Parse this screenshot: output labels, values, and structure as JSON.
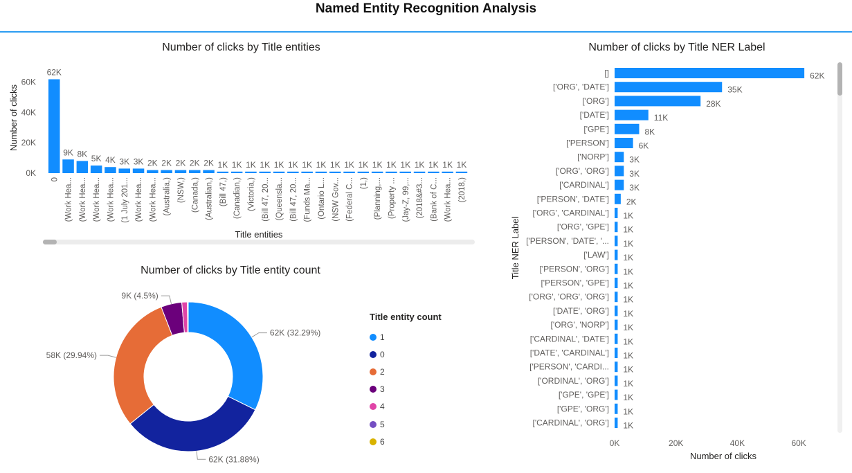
{
  "report": {
    "title": "Named Entity Recognition Analysis"
  },
  "colors": {
    "accent": "#2b9cf2",
    "bar": "#118dff"
  },
  "chart_data": [
    {
      "id": "clicks_by_title_entities",
      "type": "bar",
      "title": "Number of clicks by Title entities",
      "xlabel": "Title entities",
      "ylabel": "Number of clicks",
      "ylim": [
        0,
        62000
      ],
      "yticks": [
        0,
        20000,
        40000,
        60000
      ],
      "ytick_labels": [
        "0K",
        "20K",
        "40K",
        "60K"
      ],
      "categories": [
        "0",
        "(Work Hea...",
        "(Work Hea...",
        "(Work Hea...",
        "(Work Hea...",
        "(1 July 201...",
        "(Work Hea...",
        "(Work Hea...",
        "(Australia,)",
        "(NSW,)",
        "(Canada,)",
        "(Australian,)",
        "(Bill 47,)",
        "(Canadian,)",
        "(Victoria,)",
        "(Bill 47, 20...",
        "(Queensla...",
        "(Bill 47, 20...",
        "(Funds Ma...",
        "(Ontario L...",
        "(NSW Gov...",
        "(Federal C...",
        "(1,)",
        "(Planning,...",
        "(Property ...",
        "(Jay-Z, 99,...",
        "(2018&#3...",
        "(Bank of C...",
        "(Work Hea...",
        "(2018,)"
      ],
      "values": [
        61800,
        9000,
        8000,
        5000,
        4000,
        3000,
        3000,
        2000,
        2000,
        2000,
        2000,
        2000,
        1000,
        1000,
        1000,
        1000,
        1000,
        1000,
        1000,
        1000,
        1000,
        1000,
        1000,
        1000,
        1000,
        1000,
        1000,
        1000,
        1000,
        1000
      ],
      "data_labels": [
        "62K",
        "9K",
        "8K",
        "5K",
        "4K",
        "3K",
        "3K",
        "2K",
        "2K",
        "2K",
        "2K",
        "2K",
        "1K",
        "1K",
        "1K",
        "1K",
        "1K",
        "1K",
        "1K",
        "1K",
        "1K",
        "1K",
        "1K",
        "1K",
        "1K",
        "1K",
        "1K",
        "1K",
        "1K",
        "1K"
      ],
      "color": "#118dff",
      "grid": false
    },
    {
      "id": "clicks_by_entity_count",
      "type": "pie",
      "title": "Number of clicks by Title entity count",
      "legend_title": "Title entity count",
      "legend_position": "right",
      "donut": true,
      "slices": [
        {
          "label": "1",
          "value": 32.29,
          "display": "62K (32.29%)",
          "color": "#118dff"
        },
        {
          "label": "0",
          "value": 31.88,
          "display": "62K (31.88%)",
          "color": "#12239e"
        },
        {
          "label": "2",
          "value": 29.94,
          "display": "58K (29.94%)",
          "color": "#e66c37"
        },
        {
          "label": "3",
          "value": 4.5,
          "display": "9K (4.5%)",
          "color": "#6b007b"
        },
        {
          "label": "4",
          "value": 1.2,
          "display": "",
          "color": "#e044a7"
        },
        {
          "label": "5",
          "value": 0.1,
          "display": "",
          "color": "#744ec2"
        },
        {
          "label": "6",
          "value": 0.09,
          "display": "",
          "color": "#d9b300"
        }
      ]
    },
    {
      "id": "clicks_by_ner_label",
      "type": "bar",
      "orientation": "horizontal",
      "title": "Number of clicks by Title NER Label",
      "xlabel": "Number of clicks",
      "ylabel": "Title NER Label",
      "xlim": [
        0,
        62000
      ],
      "xticks": [
        0,
        20000,
        40000,
        60000
      ],
      "xtick_labels": [
        "0K",
        "20K",
        "40K",
        "60K"
      ],
      "categories": [
        "[]",
        "['ORG', 'DATE']",
        "['ORG']",
        "['DATE']",
        "['GPE']",
        "['PERSON']",
        "['NORP']",
        "['ORG', 'ORG']",
        "['CARDINAL']",
        "['PERSON', 'DATE']",
        "['ORG', 'CARDINAL']",
        "['ORG', 'GPE']",
        "['PERSON', 'DATE', '...",
        "['LAW']",
        "['PERSON', 'ORG']",
        "['PERSON', 'GPE']",
        "['ORG', 'ORG', 'ORG']",
        "['DATE', 'ORG']",
        "['ORG', 'NORP']",
        "['CARDINAL', 'DATE']",
        "['DATE', 'CARDINAL']",
        "['PERSON', 'CARDI...",
        "['ORDINAL', 'ORG']",
        "['GPE', 'GPE']",
        "['GPE', 'ORG']",
        "['CARDINAL', 'ORG']"
      ],
      "values": [
        61800,
        35000,
        28000,
        11000,
        8000,
        6000,
        3000,
        3000,
        3000,
        2000,
        1000,
        1000,
        1000,
        1000,
        1000,
        1000,
        1000,
        1000,
        1000,
        1000,
        1000,
        1000,
        1000,
        1000,
        1000,
        1000
      ],
      "data_labels": [
        "62K",
        "35K",
        "28K",
        "11K",
        "8K",
        "6K",
        "3K",
        "3K",
        "3K",
        "2K",
        "1K",
        "1K",
        "1K",
        "1K",
        "1K",
        "1K",
        "1K",
        "1K",
        "1K",
        "1K",
        "1K",
        "1K",
        "1K",
        "1K",
        "1K",
        "1K"
      ],
      "color": "#118dff",
      "grid": false
    }
  ]
}
